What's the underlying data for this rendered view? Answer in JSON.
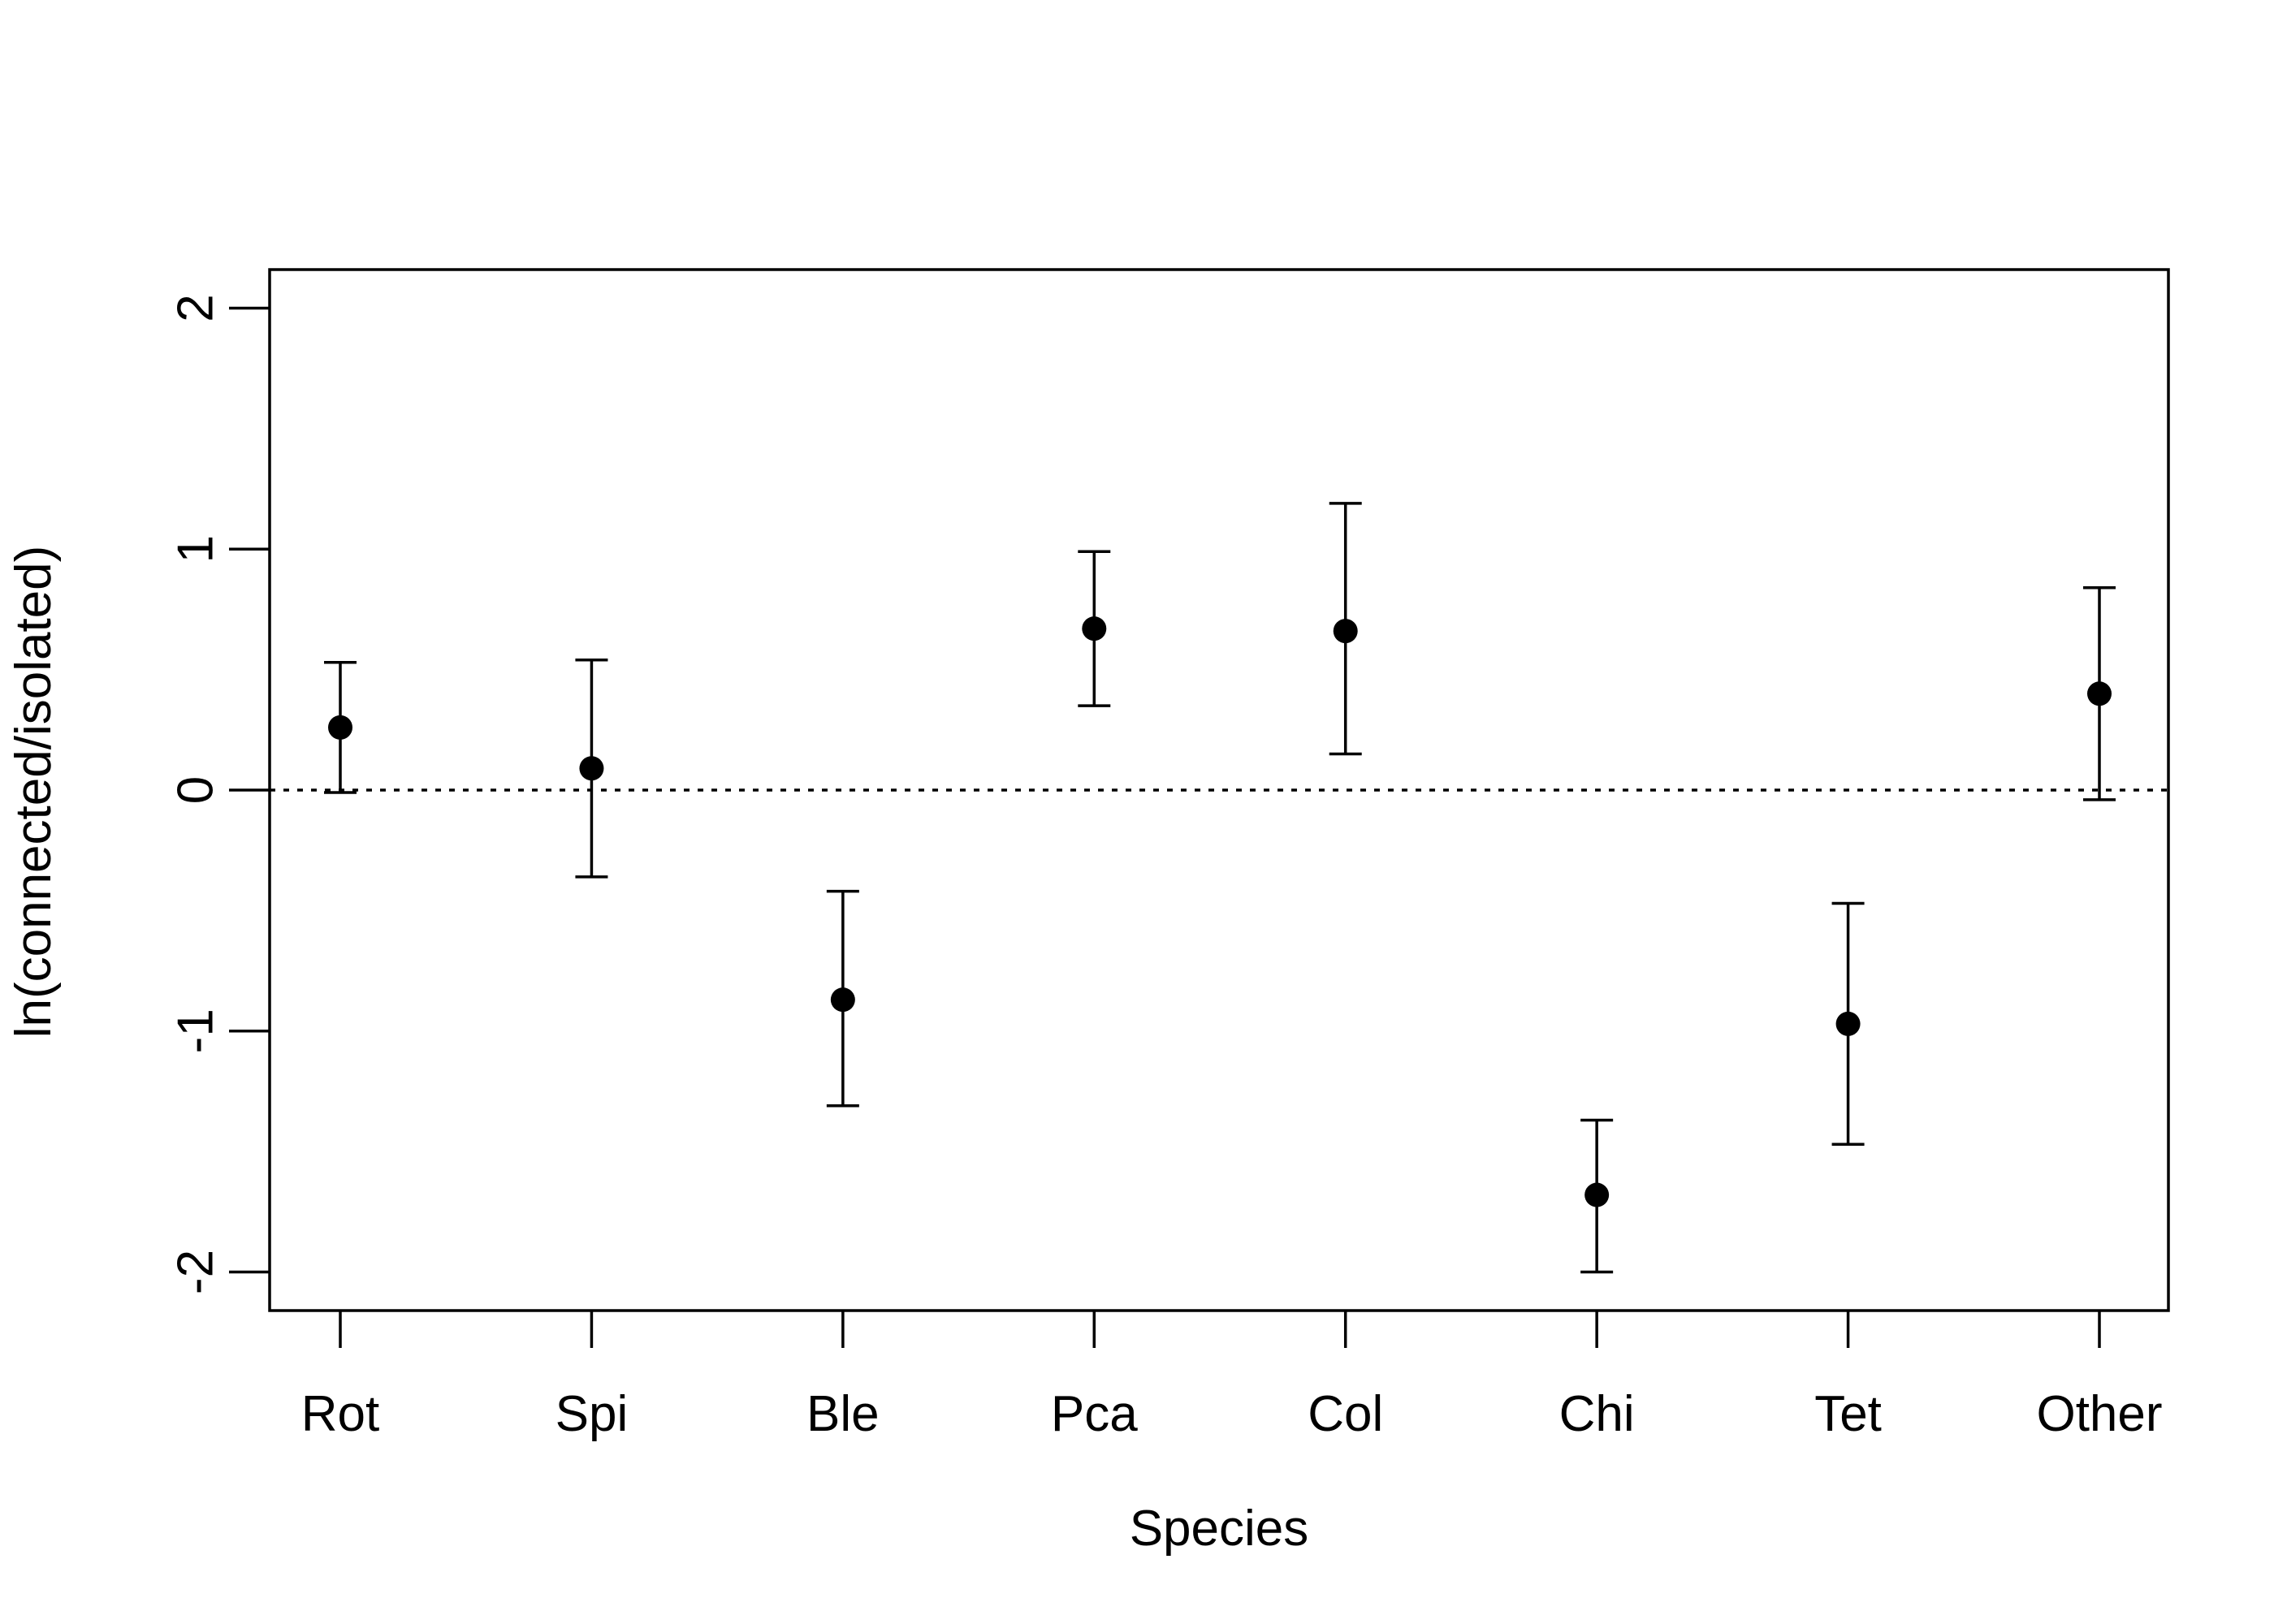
{
  "chart_data": {
    "type": "scatter",
    "title": "",
    "xlabel": "Species",
    "ylabel": "ln(connected/isolated)",
    "categories": [
      "Rot",
      "Spi",
      "Ble",
      "Pca",
      "Col",
      "Chi",
      "Tet",
      "Other"
    ],
    "values": [
      0.26,
      0.09,
      -0.87,
      0.67,
      0.66,
      -1.68,
      -0.97,
      0.4
    ],
    "error_lower": [
      -0.01,
      -0.36,
      -1.31,
      0.35,
      0.15,
      -2.0,
      -1.47,
      -0.04
    ],
    "error_upper": [
      0.53,
      0.54,
      -0.42,
      0.99,
      1.19,
      -1.37,
      -0.47,
      0.84
    ],
    "y_ticks": [
      -2,
      -1,
      0,
      1,
      2
    ],
    "y_tick_labels": [
      "-2",
      "-1",
      "0",
      "1",
      "2"
    ],
    "ylim": [
      -2.16,
      2.16
    ],
    "reference_line": {
      "y": 0,
      "style": "dotted"
    },
    "grid": false,
    "legend": "none",
    "point_color": "#000000"
  }
}
